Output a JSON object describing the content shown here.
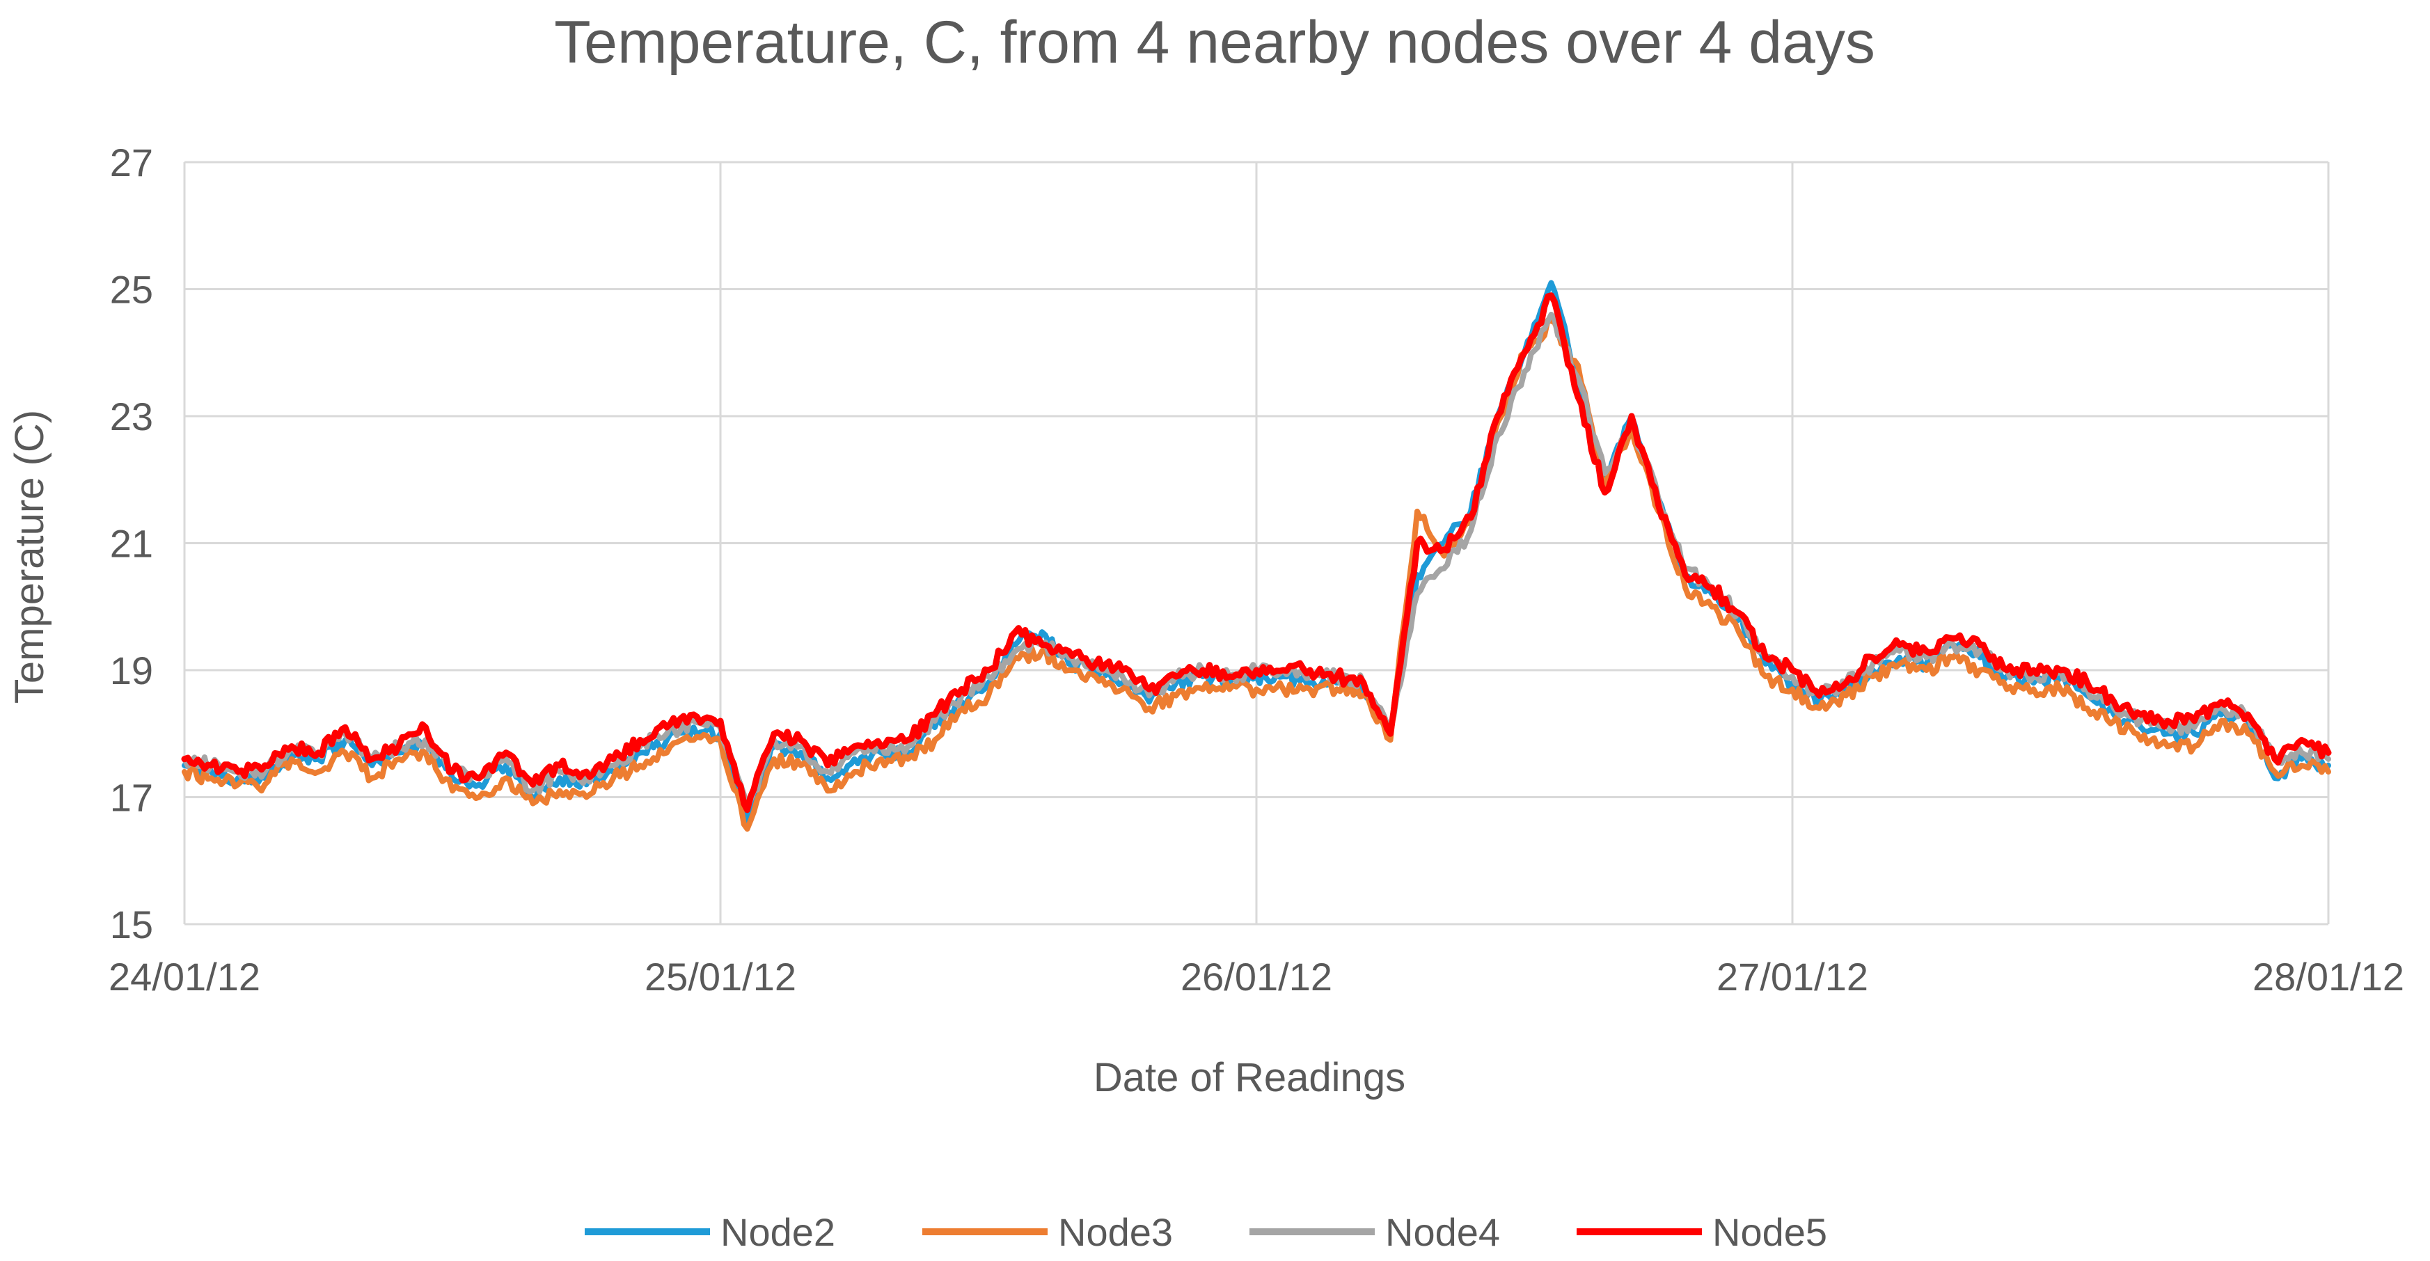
{
  "chart_data": {
    "type": "line",
    "title": "Temperature, C,  from 4 nearby nodes over 4 days",
    "xlabel": "Date of Readings",
    "ylabel": "Temperature  (C)",
    "ylim": [
      15,
      27
    ],
    "xlim": [
      0,
      4
    ],
    "yticks": [
      15,
      17,
      19,
      21,
      23,
      25,
      27
    ],
    "xticks": [
      {
        "pos": 0,
        "label": "24/01/12"
      },
      {
        "pos": 1,
        "label": "25/01/12"
      },
      {
        "pos": 2,
        "label": "26/01/12"
      },
      {
        "pos": 3,
        "label": "27/01/12"
      },
      {
        "pos": 4,
        "label": "28/01/12"
      }
    ],
    "grid": true,
    "legend_position": "bottom",
    "x": [
      0.0,
      0.05,
      0.1,
      0.15,
      0.2,
      0.25,
      0.3,
      0.35,
      0.4,
      0.45,
      0.5,
      0.55,
      0.6,
      0.65,
      0.7,
      0.75,
      0.8,
      0.85,
      0.9,
      0.95,
      1.0,
      1.05,
      1.1,
      1.15,
      1.2,
      1.25,
      1.3,
      1.35,
      1.4,
      1.45,
      1.5,
      1.55,
      1.6,
      1.65,
      1.7,
      1.75,
      1.8,
      1.85,
      1.9,
      1.95,
      2.0,
      2.05,
      2.1,
      2.15,
      2.2,
      2.25,
      2.3,
      2.35,
      2.4,
      2.45,
      2.5,
      2.55,
      2.6,
      2.65,
      2.7,
      2.75,
      2.8,
      2.85,
      2.9,
      2.95,
      3.0,
      3.05,
      3.1,
      3.15,
      3.2,
      3.25,
      3.3,
      3.35,
      3.4,
      3.45,
      3.5,
      3.55,
      3.6,
      3.65,
      3.7,
      3.75,
      3.8,
      3.85,
      3.9,
      3.95,
      4.0
    ],
    "series": [
      {
        "name": "Node2",
        "color": "#1f9bd7",
        "values": [
          17.5,
          17.4,
          17.3,
          17.3,
          17.7,
          17.6,
          17.9,
          17.5,
          17.7,
          17.9,
          17.3,
          17.2,
          17.5,
          17.0,
          17.3,
          17.2,
          17.4,
          17.7,
          17.9,
          18.1,
          18.0,
          16.6,
          17.8,
          17.7,
          17.3,
          17.6,
          17.7,
          17.7,
          18.1,
          18.5,
          18.8,
          19.4,
          19.6,
          19.1,
          19.0,
          18.8,
          18.5,
          18.8,
          18.9,
          18.8,
          18.9,
          18.9,
          18.8,
          18.8,
          18.7,
          18.0,
          20.5,
          21.0,
          21.5,
          23.0,
          24.0,
          25.1,
          23.5,
          22.0,
          23.0,
          21.7,
          20.5,
          20.2,
          19.8,
          19.1,
          18.8,
          18.5,
          18.7,
          19.0,
          19.2,
          19.1,
          19.4,
          19.2,
          18.9,
          18.8,
          18.9,
          18.6,
          18.3,
          18.1,
          18.0,
          18.0,
          18.3,
          18.2,
          17.3,
          17.6,
          17.5
        ]
      },
      {
        "name": "Node3",
        "color": "#ed7d31",
        "values": [
          17.4,
          17.3,
          17.2,
          17.2,
          17.6,
          17.4,
          17.7,
          17.3,
          17.6,
          17.7,
          17.1,
          17.0,
          17.3,
          16.9,
          17.1,
          17.0,
          17.3,
          17.5,
          17.7,
          17.9,
          17.9,
          16.5,
          17.6,
          17.5,
          17.1,
          17.4,
          17.6,
          17.6,
          17.9,
          18.4,
          18.6,
          19.2,
          19.3,
          19.0,
          18.9,
          18.7,
          18.4,
          18.6,
          18.7,
          18.7,
          18.7,
          18.7,
          18.7,
          18.7,
          18.6,
          17.9,
          21.5,
          20.8,
          21.3,
          22.9,
          24.0,
          24.5,
          23.8,
          21.9,
          22.8,
          21.5,
          20.3,
          20.0,
          19.6,
          18.9,
          18.7,
          18.4,
          18.6,
          18.9,
          19.1,
          19.0,
          19.2,
          19.0,
          18.7,
          18.7,
          18.7,
          18.4,
          18.2,
          17.9,
          17.8,
          17.8,
          18.2,
          18.0,
          17.4,
          17.5,
          17.4
        ]
      },
      {
        "name": "Node4",
        "color": "#a5a5a5",
        "values": [
          17.6,
          17.5,
          17.4,
          17.4,
          17.8,
          17.7,
          18.0,
          17.6,
          17.8,
          17.9,
          17.4,
          17.3,
          17.6,
          17.1,
          17.4,
          17.3,
          17.5,
          17.8,
          18.0,
          18.2,
          18.1,
          16.8,
          17.9,
          17.8,
          17.4,
          17.7,
          17.8,
          17.8,
          18.2,
          18.6,
          18.9,
          19.3,
          19.4,
          19.2,
          19.1,
          18.9,
          18.6,
          18.9,
          19.0,
          18.9,
          19.0,
          19.0,
          18.9,
          18.9,
          18.8,
          18.1,
          20.2,
          20.6,
          21.2,
          22.7,
          23.7,
          24.6,
          23.6,
          22.1,
          22.9,
          21.7,
          20.6,
          20.3,
          19.9,
          19.2,
          18.9,
          18.6,
          18.8,
          19.1,
          19.3,
          19.2,
          19.4,
          19.3,
          19.0,
          18.9,
          19.0,
          18.7,
          18.4,
          18.2,
          18.1,
          18.1,
          18.4,
          18.3,
          17.6,
          17.7,
          17.6
        ]
      },
      {
        "name": "Node5",
        "color": "#ff0000",
        "values": [
          17.6,
          17.5,
          17.4,
          17.5,
          17.8,
          17.7,
          18.1,
          17.6,
          17.8,
          18.1,
          17.4,
          17.3,
          17.7,
          17.2,
          17.5,
          17.4,
          17.6,
          17.9,
          18.1,
          18.3,
          18.2,
          16.8,
          18.0,
          17.9,
          17.5,
          17.8,
          17.8,
          17.9,
          18.3,
          18.7,
          19.0,
          19.6,
          19.4,
          19.3,
          19.1,
          19.0,
          18.7,
          18.9,
          19.0,
          18.9,
          19.0,
          19.0,
          19.0,
          18.9,
          18.8,
          18.0,
          21.0,
          20.9,
          21.4,
          23.0,
          24.0,
          24.9,
          23.3,
          21.8,
          23.0,
          21.6,
          20.5,
          20.3,
          19.9,
          19.2,
          19.0,
          18.6,
          18.8,
          19.2,
          19.4,
          19.3,
          19.5,
          19.4,
          19.0,
          19.0,
          19.0,
          18.8,
          18.5,
          18.3,
          18.2,
          18.2,
          18.5,
          18.3,
          17.6,
          17.9,
          17.7
        ]
      }
    ]
  }
}
